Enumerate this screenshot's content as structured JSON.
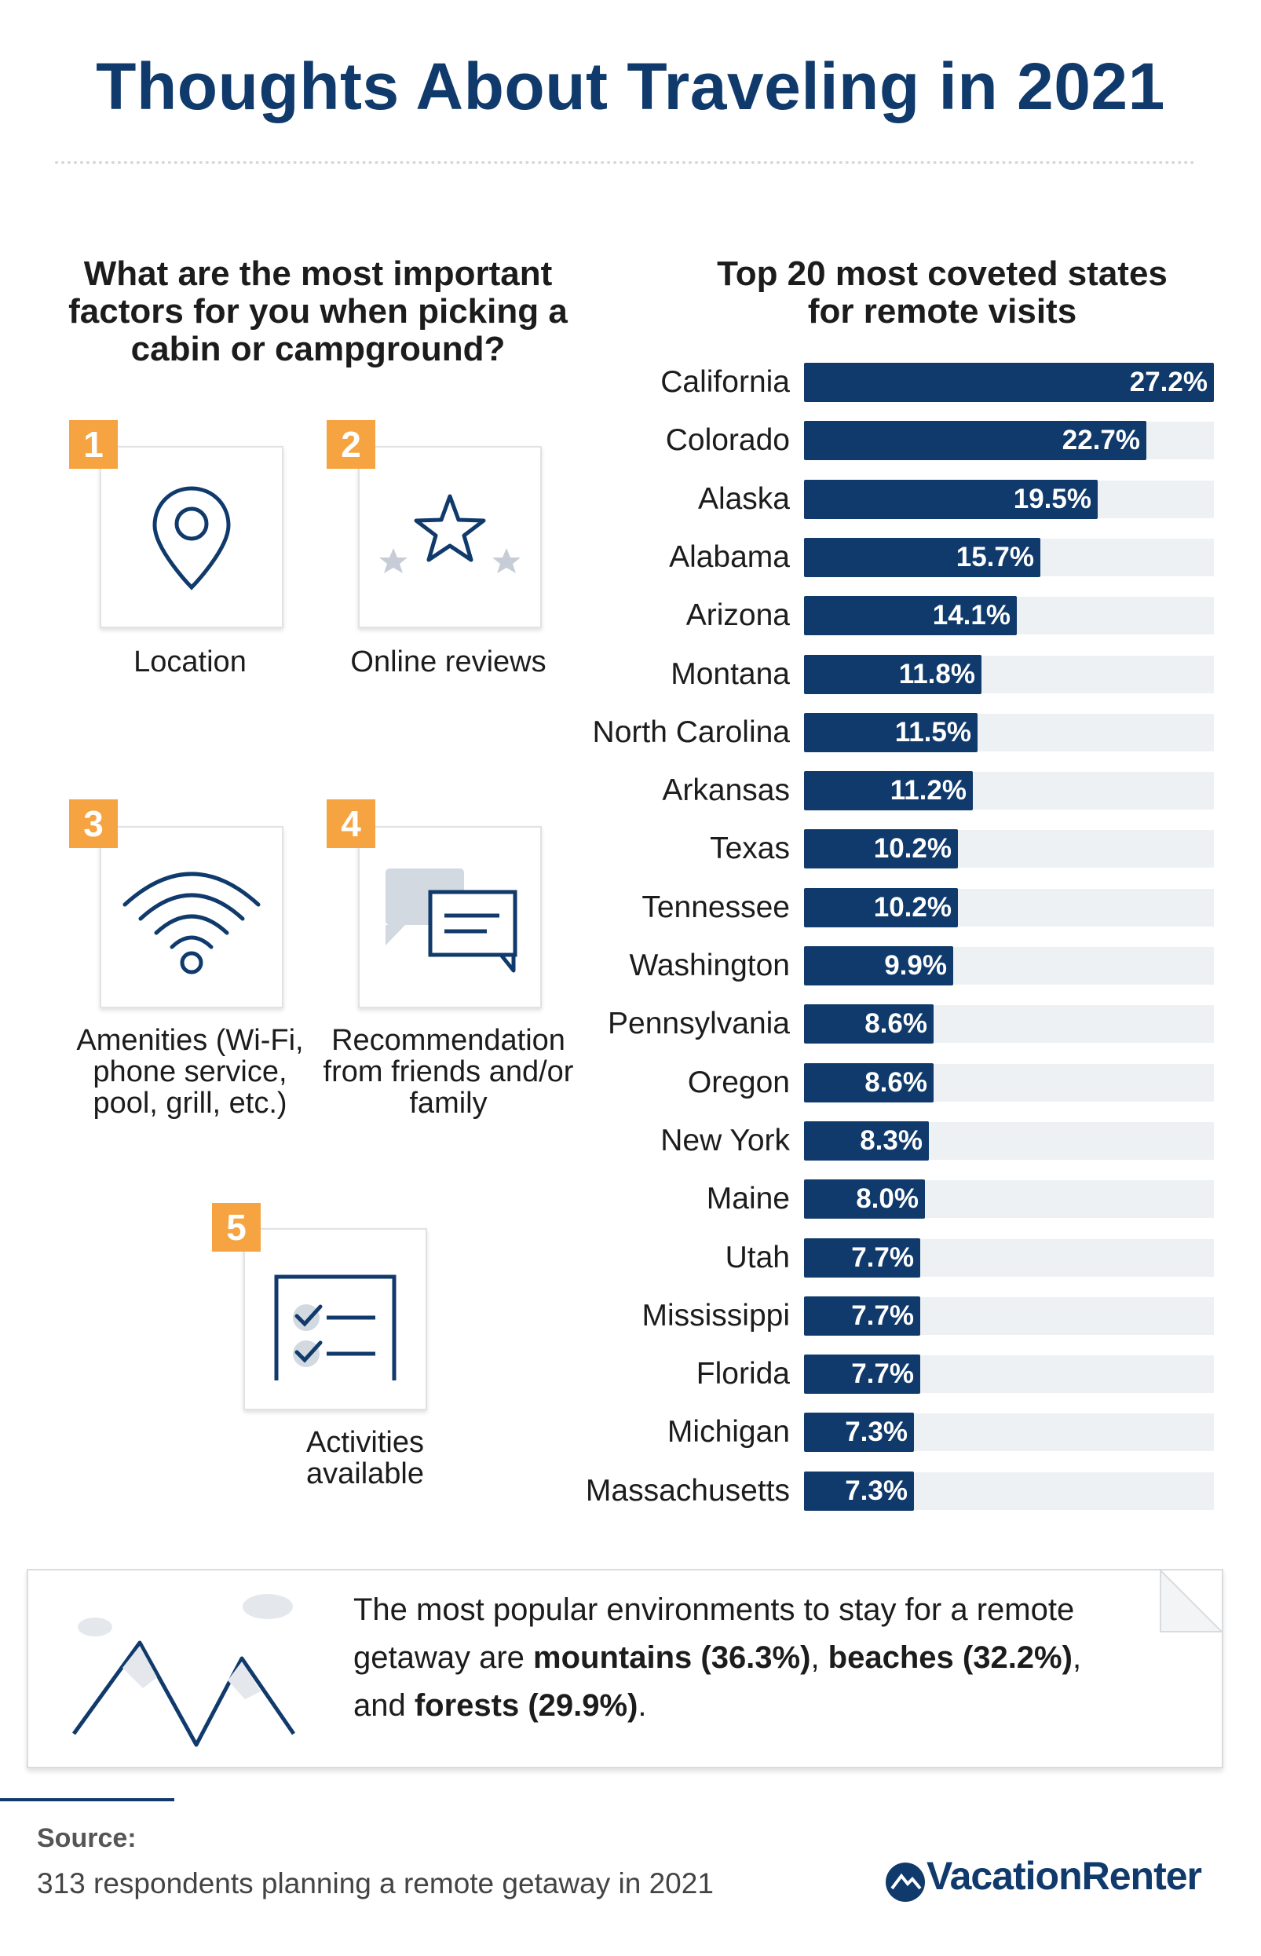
{
  "title": "Thoughts About Traveling in 2021",
  "factors_heading": "What are the most important factors for you when picking a cabin or campground?",
  "chart_heading": "Top 20 most coveted states for remote visits",
  "factors": [
    {
      "rank": "1",
      "label": "Location",
      "icon": "map-pin-icon"
    },
    {
      "rank": "2",
      "label": "Online reviews",
      "icon": "star-icon"
    },
    {
      "rank": "3",
      "label": "Amenities (Wi-Fi, phone service, pool, grill, etc.)",
      "icon": "wifi-icon"
    },
    {
      "rank": "4",
      "label": "Recommendation from friends and/or family",
      "icon": "chat-bubbles-icon"
    },
    {
      "rank": "5",
      "label": "Activities available",
      "icon": "checklist-icon"
    }
  ],
  "chart_data": {
    "type": "bar",
    "orientation": "horizontal",
    "title": "Top 20 most coveted states for remote visits",
    "categories": [
      "California",
      "Colorado",
      "Alaska",
      "Alabama",
      "Arizona",
      "Montana",
      "North Carolina",
      "Arkansas",
      "Texas",
      "Tennessee",
      "Washington",
      "Pennsylvania",
      "Oregon",
      "New York",
      "Maine",
      "Utah",
      "Mississippi",
      "Florida",
      "Michigan",
      "Massachusetts"
    ],
    "values": [
      27.2,
      22.7,
      19.5,
      15.7,
      14.1,
      11.8,
      11.5,
      11.2,
      10.2,
      10.2,
      9.9,
      8.6,
      8.6,
      8.3,
      8.0,
      7.7,
      7.7,
      7.7,
      7.3,
      7.3
    ],
    "value_labels": [
      "27.2%",
      "22.7%",
      "19.5%",
      "15.7%",
      "14.1%",
      "11.8%",
      "11.5%",
      "11.2%",
      "10.2%",
      "10.2%",
      "9.9%",
      "8.6%",
      "8.6%",
      "8.3%",
      "8.0%",
      "7.7%",
      "7.7%",
      "7.7%",
      "7.3%",
      "7.3%"
    ],
    "xlim": [
      0,
      27.2
    ],
    "bar_color": "#0f3a6b",
    "track_color": "#eef1f4",
    "grid": false
  },
  "note": {
    "intro": "The most popular environments to stay for a remote getaway are ",
    "item1": "mountains (36.3%)",
    "sep1": ", ",
    "item2": "beaches (32.2%)",
    "sep2": ", and ",
    "item3": "forests (29.9%)",
    "end": "."
  },
  "source": {
    "label": "Source:",
    "text": "313 respondents planning a remote getaway in 2021"
  },
  "brand": "VacationRenter",
  "colors": {
    "navy": "#0f3a6b",
    "orange": "#f6a441"
  }
}
